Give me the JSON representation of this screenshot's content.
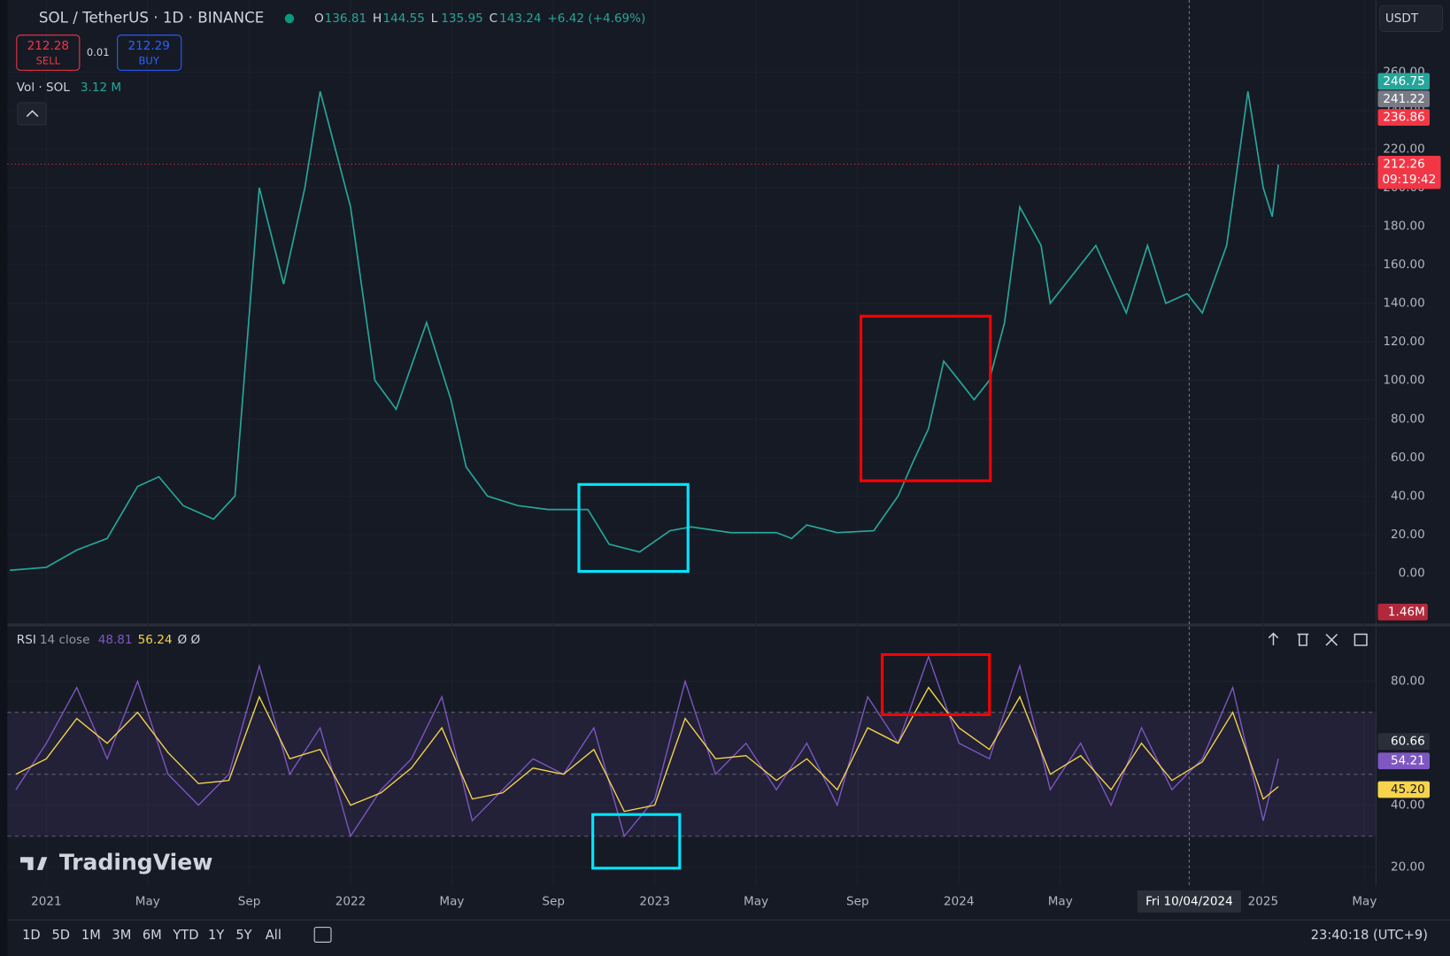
{
  "header": {
    "symbol": "SOL / TetherUS · 1D · BINANCE",
    "ohlc": [
      {
        "key": "O",
        "value": "136.81"
      },
      {
        "key": "H",
        "value": "144.55"
      },
      {
        "key": "L",
        "value": "135.95"
      },
      {
        "key": "C",
        "value": "143.24"
      }
    ],
    "change": "+6.42 (+4.69%)",
    "currency": "USDT"
  },
  "trade": {
    "sell_price": "212.28",
    "sell": "SELL",
    "spread": "0.01",
    "buy_price": "212.29",
    "buy": "BUY"
  },
  "volume_legend": {
    "label": "Vol · SOL",
    "value": "3.12 M"
  },
  "rsi_legend": {
    "label": "RSI",
    "params": "14 close",
    "values": [
      "48.81",
      "56.24"
    ],
    "extra": "Ø Ø"
  },
  "watermark": "TradingView",
  "crosshair_date": "Fri 10/04/2024",
  "toolbar": {
    "ranges": [
      "1D",
      "5D",
      "1M",
      "3M",
      "6M",
      "YTD",
      "1Y",
      "5Y",
      "All"
    ],
    "clock": "23:40:18 (UTC+9)"
  },
  "chart_data": [
    {
      "type": "line",
      "grid": true,
      "x": [
        2020.88,
        2021.0,
        2021.1,
        2021.2,
        2021.3,
        2021.37,
        2021.45,
        2021.55,
        2021.62,
        2021.67,
        2021.7,
        2021.78,
        2021.85,
        2021.9,
        2022.0,
        2022.08,
        2022.15,
        2022.25,
        2022.33,
        2022.38,
        2022.45,
        2022.55,
        2022.65,
        2022.78,
        2022.85,
        2022.95,
        2023.05,
        2023.12,
        2023.25,
        2023.4,
        2023.45,
        2023.5,
        2023.6,
        2023.72,
        2023.8,
        2023.85,
        2023.9,
        2023.95,
        2024.0,
        2024.05,
        2024.1,
        2024.15,
        2024.2,
        2024.27,
        2024.3,
        2024.35,
        2024.45,
        2024.55,
        2024.62,
        2024.68,
        2024.75,
        2024.8,
        2024.88,
        2024.95,
        2025.0,
        2025.03,
        2025.05
      ],
      "series": [
        {
          "name": "SOL",
          "color": "#26a69a",
          "values": [
            1.5,
            3,
            12,
            18,
            45,
            50,
            35,
            28,
            40,
            140,
            200,
            150,
            200,
            250,
            190,
            100,
            85,
            130,
            90,
            55,
            40,
            35,
            33,
            33,
            15,
            11,
            22,
            24,
            21,
            21,
            18,
            25,
            21,
            22,
            40,
            58,
            75,
            110,
            100,
            90,
            100,
            130,
            190,
            170,
            140,
            150,
            170,
            135,
            170,
            140,
            145,
            135,
            170,
            250,
            200,
            185,
            212
          ]
        }
      ],
      "xlim": [
        2020.872,
        2025.371
      ],
      "xticks": [
        {
          "value": 2021.0,
          "label": "2021"
        },
        {
          "value": 2021.333,
          "label": "May"
        },
        {
          "value": 2021.667,
          "label": "Sep"
        },
        {
          "value": 2022.0,
          "label": "2022"
        },
        {
          "value": 2022.333,
          "label": "May"
        },
        {
          "value": 2022.667,
          "label": "Sep"
        },
        {
          "value": 2023.0,
          "label": "2023"
        },
        {
          "value": 2023.333,
          "label": "May"
        },
        {
          "value": 2023.667,
          "label": "Sep"
        },
        {
          "value": 2024.0,
          "label": "2024"
        },
        {
          "value": 2024.333,
          "label": "May"
        },
        {
          "value": 2025.0,
          "label": "2025"
        },
        {
          "value": 2025.333,
          "label": "May"
        }
      ],
      "ylim": [
        -25,
        283
      ],
      "yticks": [
        {
          "value": 0,
          "label": "0.00"
        },
        {
          "value": 20,
          "label": "20.00"
        },
        {
          "value": 40,
          "label": "40.00"
        },
        {
          "value": 60,
          "label": "60.00"
        },
        {
          "value": 80,
          "label": "80.00"
        },
        {
          "value": 100,
          "label": "100.00"
        },
        {
          "value": 120,
          "label": "120.00"
        },
        {
          "value": 140,
          "label": "140.00"
        },
        {
          "value": 160,
          "label": "160.00"
        },
        {
          "value": 180,
          "label": "180.00"
        },
        {
          "value": 200,
          "label": "200.00"
        },
        {
          "value": 220,
          "label": "220.00"
        },
        {
          "value": 240,
          "label": "240.00"
        },
        {
          "value": 260,
          "label": "260.00"
        }
      ],
      "last": {
        "value": 212.26,
        "label": "212.26",
        "countdown": "09:19:42",
        "color": "#f23645"
      },
      "badges": [
        {
          "label": "246.75",
          "color": "#26a69a"
        },
        {
          "label": "241.22",
          "color": "#787b86"
        },
        {
          "label": "236.86",
          "color": "#f23645"
        },
        {
          "label": "1.46M",
          "color": "#b2283a"
        }
      ]
    },
    {
      "type": "line",
      "grid": true,
      "x": [
        2020.9,
        2021.0,
        2021.1,
        2021.2,
        2021.3,
        2021.4,
        2021.5,
        2021.6,
        2021.7,
        2021.8,
        2021.9,
        2022.0,
        2022.1,
        2022.2,
        2022.3,
        2022.4,
        2022.5,
        2022.6,
        2022.7,
        2022.8,
        2022.9,
        2023.0,
        2023.1,
        2023.2,
        2023.3,
        2023.4,
        2023.5,
        2023.6,
        2023.7,
        2023.8,
        2023.9,
        2024.0,
        2024.1,
        2024.2,
        2024.3,
        2024.4,
        2024.5,
        2024.6,
        2024.7,
        2024.8,
        2024.9,
        2025.0,
        2025.05
      ],
      "series": [
        {
          "name": "RSI",
          "color": "#7e57c2",
          "values": [
            45,
            60,
            78,
            55,
            80,
            50,
            40,
            50,
            85,
            50,
            65,
            30,
            45,
            55,
            75,
            35,
            45,
            55,
            50,
            65,
            30,
            42,
            80,
            50,
            60,
            45,
            60,
            40,
            75,
            60,
            88,
            60,
            55,
            85,
            45,
            60,
            40,
            65,
            45,
            55,
            78,
            35,
            55
          ]
        },
        {
          "name": "MA",
          "color": "#f7d44b",
          "values": [
            50,
            55,
            68,
            60,
            70,
            57,
            47,
            48,
            75,
            55,
            58,
            40,
            44,
            52,
            65,
            42,
            44,
            52,
            50,
            58,
            38,
            40,
            68,
            55,
            56,
            48,
            55,
            45,
            65,
            60,
            78,
            65,
            58,
            75,
            50,
            56,
            45,
            60,
            48,
            54,
            70,
            42,
            46
          ]
        }
      ],
      "xlim": [
        2020.872,
        2025.371
      ],
      "ylim": [
        14,
        97
      ],
      "yticks": [
        {
          "value": 20,
          "label": "20.00"
        },
        {
          "value": 40,
          "label": "40.00"
        },
        {
          "value": 80,
          "label": "80.00"
        }
      ],
      "bands": [
        30,
        50,
        70
      ],
      "badges": [
        {
          "label": "60.66",
          "color": "#2a2e39"
        },
        {
          "label": "54.21",
          "color": "#7e57c2"
        },
        {
          "label": "45.20",
          "color": "#f7d44b"
        }
      ]
    }
  ]
}
